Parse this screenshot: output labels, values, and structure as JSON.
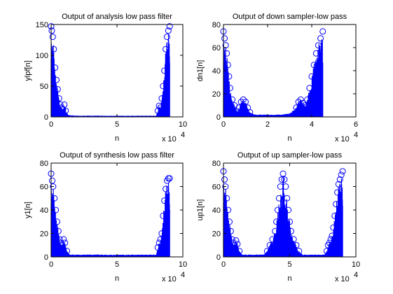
{
  "colors": {
    "series": "#0000ff",
    "axes": "#000000",
    "background": "#ffffff"
  },
  "chart_data": [
    {
      "type": "stem",
      "title": "Output of analysis low pass filter",
      "xlabel": "n",
      "ylabel": "ylpf[n]",
      "xlim": [
        0,
        100000
      ],
      "ylim": [
        0,
        150
      ],
      "xticks": [
        "0",
        "5",
        "10"
      ],
      "yticks": [
        "0",
        "50",
        "100",
        "150"
      ],
      "x_multiplier": [
        "x 10",
        "4"
      ],
      "n_max": 90000,
      "envelope": [
        [
          0,
          147
        ],
        [
          500,
          140
        ],
        [
          1200,
          130
        ],
        [
          2000,
          110
        ],
        [
          3000,
          80
        ],
        [
          4000,
          60
        ],
        [
          5000,
          45
        ],
        [
          6000,
          30
        ],
        [
          7000,
          20
        ],
        [
          8000,
          15
        ],
        [
          9000,
          12
        ],
        [
          10000,
          20
        ],
        [
          11000,
          10
        ],
        [
          13000,
          3
        ],
        [
          20000,
          2
        ],
        [
          80000,
          2
        ],
        [
          81000,
          10
        ],
        [
          82000,
          18
        ],
        [
          83000,
          15
        ],
        [
          84000,
          30
        ],
        [
          85000,
          50
        ],
        [
          86000,
          75
        ],
        [
          87000,
          110
        ],
        [
          88000,
          130
        ],
        [
          89000,
          140
        ],
        [
          90000,
          147
        ]
      ]
    },
    {
      "type": "stem",
      "title": "Output of down sampler-low pass",
      "xlabel": "n",
      "ylabel": "dn1[n]",
      "xlim": [
        0,
        60000
      ],
      "ylim": [
        0,
        80
      ],
      "xticks": [
        "0",
        "2",
        "4",
        "6"
      ],
      "yticks": [
        "0",
        "20",
        "40",
        "60",
        "80"
      ],
      "x_multiplier": [
        "x 10",
        "4"
      ],
      "n_max": 45000,
      "envelope": [
        [
          0,
          74
        ],
        [
          500,
          68
        ],
        [
          1000,
          62
        ],
        [
          1500,
          55
        ],
        [
          2000,
          45
        ],
        [
          2500,
          35
        ],
        [
          3000,
          25
        ],
        [
          4000,
          15
        ],
        [
          5000,
          10
        ],
        [
          6000,
          5
        ],
        [
          7000,
          8
        ],
        [
          8000,
          13
        ],
        [
          9000,
          15
        ],
        [
          10000,
          13
        ],
        [
          11000,
          8
        ],
        [
          12000,
          4
        ],
        [
          14000,
          2
        ],
        [
          20000,
          2
        ],
        [
          26000,
          2
        ],
        [
          30000,
          3
        ],
        [
          33000,
          8
        ],
        [
          34000,
          13
        ],
        [
          35000,
          15
        ],
        [
          36000,
          12
        ],
        [
          37000,
          10
        ],
        [
          38000,
          15
        ],
        [
          39000,
          25
        ],
        [
          40000,
          35
        ],
        [
          41000,
          45
        ],
        [
          42000,
          55
        ],
        [
          43000,
          62
        ],
        [
          44000,
          68
        ],
        [
          45000,
          74
        ]
      ]
    },
    {
      "type": "stem",
      "title": "Output of synthesis low pass filter",
      "xlabel": "n",
      "ylabel": "y1[n]",
      "xlim": [
        0,
        100000
      ],
      "ylim": [
        0,
        80
      ],
      "xticks": [
        "0",
        "5",
        "10"
      ],
      "yticks": [
        "0",
        "20",
        "40",
        "60",
        "80"
      ],
      "x_multiplier": [
        "x 10",
        "4"
      ],
      "n_max": 90000,
      "envelope": [
        [
          0,
          71
        ],
        [
          800,
          65
        ],
        [
          1500,
          60
        ],
        [
          2500,
          50
        ],
        [
          3500,
          40
        ],
        [
          4500,
          30
        ],
        [
          5500,
          22
        ],
        [
          6500,
          15
        ],
        [
          7500,
          12
        ],
        [
          8500,
          10
        ],
        [
          9500,
          15
        ],
        [
          10500,
          12
        ],
        [
          12000,
          5
        ],
        [
          14000,
          2
        ],
        [
          20000,
          2
        ],
        [
          80000,
          2
        ],
        [
          81000,
          8
        ],
        [
          82000,
          12
        ],
        [
          83000,
          15
        ],
        [
          84000,
          20
        ],
        [
          85000,
          35
        ],
        [
          86000,
          48
        ],
        [
          87000,
          58
        ],
        [
          88000,
          65
        ],
        [
          89000,
          67
        ],
        [
          90000,
          67
        ]
      ]
    },
    {
      "type": "stem",
      "title": "Output of up sampler-low pass",
      "xlabel": "n",
      "ylabel": "up1[n]",
      "xlim": [
        0,
        100000
      ],
      "ylim": [
        0,
        80
      ],
      "xticks": [
        "0",
        "5",
        "10"
      ],
      "yticks": [
        "0",
        "20",
        "40",
        "60",
        "80"
      ],
      "x_multiplier": [
        "x 10",
        "4"
      ],
      "n_max": 90000,
      "envelope": [
        [
          0,
          73
        ],
        [
          800,
          66
        ],
        [
          1500,
          60
        ],
        [
          2500,
          50
        ],
        [
          3500,
          40
        ],
        [
          4500,
          30
        ],
        [
          5500,
          22
        ],
        [
          6500,
          15
        ],
        [
          7500,
          12
        ],
        [
          8500,
          10
        ],
        [
          9500,
          14
        ],
        [
          10500,
          11
        ],
        [
          12000,
          5
        ],
        [
          14000,
          2
        ],
        [
          20000,
          2
        ],
        [
          30000,
          2
        ],
        [
          33000,
          5
        ],
        [
          35000,
          10
        ],
        [
          37000,
          15
        ],
        [
          39000,
          22
        ],
        [
          40000,
          30
        ],
        [
          41000,
          40
        ],
        [
          42000,
          50
        ],
        [
          43000,
          60
        ],
        [
          44000,
          66
        ],
        [
          45000,
          71
        ],
        [
          46000,
          66
        ],
        [
          47000,
          60
        ],
        [
          48000,
          50
        ],
        [
          49000,
          40
        ],
        [
          50000,
          30
        ],
        [
          51000,
          22
        ],
        [
          53000,
          15
        ],
        [
          55000,
          10
        ],
        [
          57000,
          5
        ],
        [
          60000,
          2
        ],
        [
          76000,
          2
        ],
        [
          78000,
          5
        ],
        [
          79000,
          10
        ],
        [
          80000,
          12
        ],
        [
          81000,
          15
        ],
        [
          82000,
          18
        ],
        [
          83000,
          25
        ],
        [
          84000,
          35
        ],
        [
          85000,
          45
        ],
        [
          86000,
          55
        ],
        [
          87000,
          62
        ],
        [
          88000,
          66
        ],
        [
          89000,
          70
        ],
        [
          90000,
          73
        ]
      ]
    }
  ]
}
